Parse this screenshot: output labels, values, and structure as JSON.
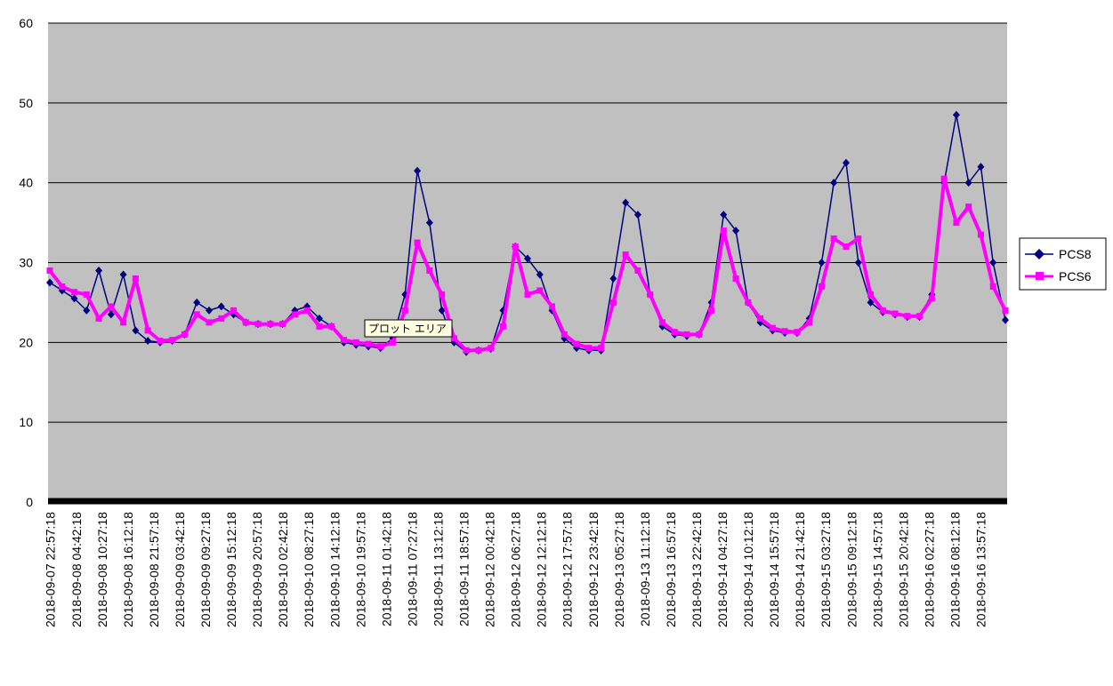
{
  "chart_data": {
    "type": "line",
    "title": "",
    "xlabel": "",
    "ylabel": "",
    "ylim": [
      0,
      60
    ],
    "yticks": [
      0,
      10,
      20,
      30,
      40,
      50,
      60
    ],
    "grid": true,
    "legend_position": "right",
    "plot_background": "#c0c0c0",
    "tooltip": "プロット エリア",
    "x_tick_labels": [
      "2018-09-07 22:57:18",
      "2018-09-08 04:42:18",
      "2018-09-08 10:27:18",
      "2018-09-08 16:12:18",
      "2018-09-08 21:57:18",
      "2018-09-09 03:42:18",
      "2018-09-09 09:27:18",
      "2018-09-09 15:12:18",
      "2018-09-09 20:57:18",
      "2018-09-10 02:42:18",
      "2018-09-10 08:27:18",
      "2018-09-10 14:12:18",
      "2018-09-10 19:57:18",
      "2018-09-11 01:42:18",
      "2018-09-11 07:27:18",
      "2018-09-11 13:12:18",
      "2018-09-11 18:57:18",
      "2018-09-12 00:42:18",
      "2018-09-12 06:27:18",
      "2018-09-12 12:12:18",
      "2018-09-12 17:57:18",
      "2018-09-12 23:42:18",
      "2018-09-13 05:27:18",
      "2018-09-13 11:12:18",
      "2018-09-13 16:57:18",
      "2018-09-13 22:42:18",
      "2018-09-14 04:27:18",
      "2018-09-14 10:12:18",
      "2018-09-14 15:57:18",
      "2018-09-14 21:42:18",
      "2018-09-15 03:27:18",
      "2018-09-15 09:12:18",
      "2018-09-15 14:57:18",
      "2018-09-15 20:42:18",
      "2018-09-16 02:27:18",
      "2018-09-16 08:12:18",
      "2018-09-16 13:57:18"
    ],
    "series": [
      {
        "name": "PCS8",
        "color": "#000080",
        "marker": "diamond",
        "values": [
          27.5,
          26.5,
          25.5,
          24.0,
          29.0,
          23.5,
          28.5,
          21.5,
          20.2,
          20.0,
          20.2,
          21.0,
          25.0,
          24.0,
          24.5,
          23.5,
          22.5,
          22.3,
          22.3,
          22.3,
          24.0,
          24.5,
          23.0,
          22.0,
          20.0,
          19.7,
          19.5,
          19.3,
          20.5,
          26.0,
          41.5,
          35.0,
          24.0,
          20.0,
          18.8,
          19.0,
          19.2,
          24.0,
          32.0,
          30.5,
          28.5,
          24.0,
          20.5,
          19.3,
          19.0,
          19.0,
          28.0,
          37.5,
          36.0,
          26.0,
          22.0,
          21.0,
          20.8,
          21.0,
          25.0,
          36.0,
          34.0,
          25.0,
          22.5,
          21.5,
          21.2,
          21.2,
          23.0,
          30.0,
          40.0,
          42.5,
          30.0,
          25.0,
          23.8,
          23.5,
          23.2,
          23.2,
          26.0,
          40.0,
          48.5,
          40.0,
          42.0,
          30.0,
          22.8
        ]
      },
      {
        "name": "PCS6",
        "color": "#ff00ff",
        "marker": "square",
        "values": [
          29.0,
          27.0,
          26.3,
          26.0,
          23.0,
          24.5,
          22.5,
          28.0,
          21.5,
          20.2,
          20.3,
          21.0,
          23.5,
          22.5,
          23.0,
          24.0,
          22.5,
          22.3,
          22.3,
          22.3,
          23.5,
          24.0,
          22.0,
          22.0,
          20.3,
          20.0,
          19.8,
          19.5,
          20.0,
          24.0,
          32.5,
          29.0,
          26.0,
          20.5,
          19.0,
          19.0,
          19.3,
          22.0,
          32.0,
          26.0,
          26.5,
          24.5,
          21.0,
          19.8,
          19.3,
          19.3,
          25.0,
          31.0,
          29.0,
          26.0,
          22.5,
          21.3,
          21.0,
          21.0,
          24.0,
          34.0,
          28.0,
          25.0,
          23.0,
          21.8,
          21.4,
          21.3,
          22.5,
          27.0,
          33.0,
          32.0,
          33.0,
          26.0,
          24.0,
          23.6,
          23.3,
          23.3,
          25.5,
          40.5,
          35.0,
          37.0,
          33.5,
          27.0,
          24.0
        ]
      }
    ]
  }
}
